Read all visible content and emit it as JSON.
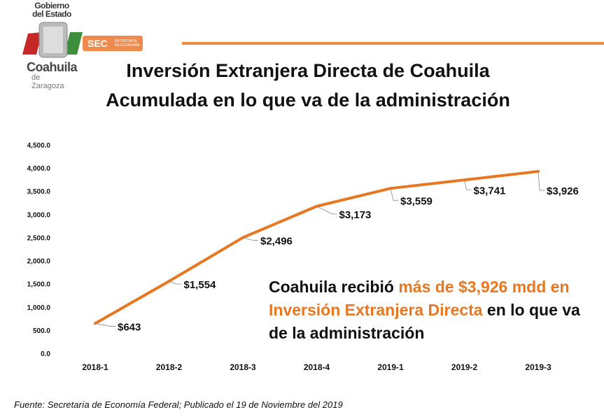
{
  "logo": {
    "top": "Gobierno del Estado",
    "name": "Coahuila",
    "sub": "de Zaragoza",
    "sec": "SEC",
    "sec_sub": "SECRETARÍA DE ECONOMÍA"
  },
  "title_line1": "Inversión Extranjera Directa de Coahuila",
  "title_line2": "Acumulada en lo que va de la administración",
  "callout": {
    "part1": "Coahuila recibió ",
    "highlight": "más de $3,926 mdd en Inversión Extranjera Directa",
    "part2": " en lo que va de la administración"
  },
  "footer": "Fuente: Secretaría de Economía Federal; Publicado el 19 de Noviembre del 2019",
  "colors": {
    "line": "#E87722",
    "accent": "#F08C3C"
  },
  "chart_data": {
    "type": "line",
    "title": "Inversión Extranjera Directa de Coahuila Acumulada en lo que va de la administración",
    "categories": [
      "2018-1",
      "2018-2",
      "2018-3",
      "2018-4",
      "2019-1",
      "2019-2",
      "2019-3"
    ],
    "values": [
      643,
      1554,
      2496,
      3173,
      3559,
      3741,
      3926
    ],
    "data_labels": [
      "$643",
      "$1,554",
      "$2,496",
      "$3,173",
      "$3,559",
      "$3,741",
      "$3,926"
    ],
    "yticks": [
      0,
      500,
      1000,
      1500,
      2000,
      2500,
      3000,
      3500,
      4000,
      4500
    ],
    "ytick_labels": [
      "0.0",
      "500.0",
      "1,000.0",
      "1,500.0",
      "2,000.0",
      "2,500.0",
      "3,000.0",
      "3,500.0",
      "4,000.0",
      "4,500.0"
    ],
    "ylim": [
      0,
      4500
    ],
    "xlabel": "",
    "ylabel": "",
    "grid": false,
    "legend": "none"
  }
}
